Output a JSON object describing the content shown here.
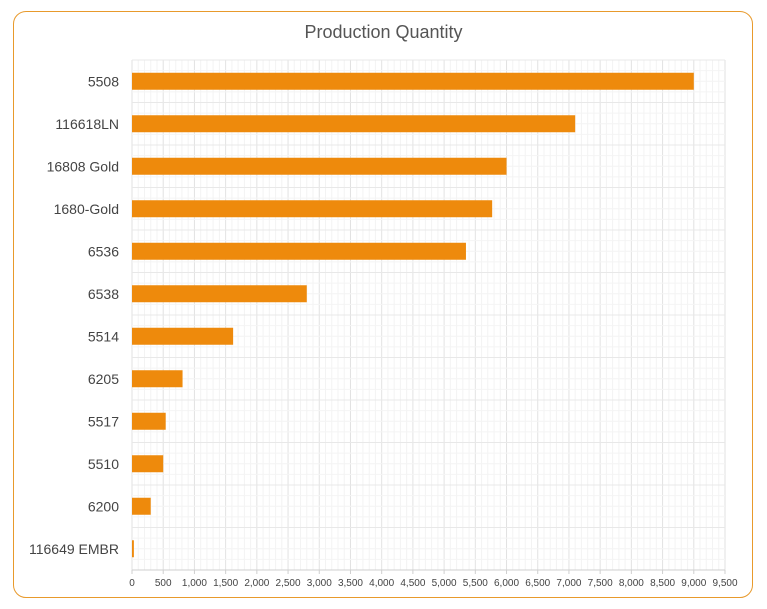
{
  "chart_data": {
    "type": "bar",
    "orientation": "horizontal",
    "title": "Production Quantity",
    "xlabel": "",
    "ylabel": "",
    "categories": [
      "5508",
      "116618LN",
      "16808 Gold",
      "1680-Gold",
      "6536",
      "6538",
      "5514",
      "6205",
      "5517",
      "5510",
      "6200",
      "116649 EMBR"
    ],
    "values": [
      9000,
      7100,
      6000,
      5770,
      5350,
      2800,
      1620,
      810,
      540,
      500,
      300,
      30
    ],
    "xlim": [
      0,
      9500
    ],
    "xticks": [
      0,
      500,
      1000,
      1500,
      2000,
      2500,
      3000,
      3500,
      4000,
      4500,
      5000,
      5500,
      6000,
      6500,
      7000,
      7500,
      8000,
      8500,
      9000,
      9500
    ],
    "xtick_labels": [
      "0",
      "500",
      "1,000",
      "1,500",
      "2,000",
      "2,500",
      "3,000",
      "3,500",
      "4,000",
      "4,500",
      "5,000",
      "5,500",
      "6,000",
      "6,500",
      "7,000",
      "7,500",
      "8,000",
      "8,500",
      "9,000",
      "9,500"
    ],
    "grid": true,
    "legend": "none",
    "colors": {
      "bar": "#ee8a0c",
      "frame": "#e89a2c",
      "grid": "#e6e6e6",
      "text": "#444444"
    }
  }
}
